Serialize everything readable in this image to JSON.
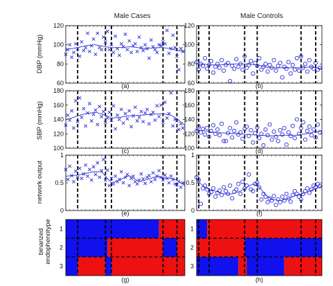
{
  "chart_data": {
    "type": "scatter",
    "columns": [
      {
        "title": "Male Cases",
        "marker": "x"
      },
      {
        "title": "Male Controls",
        "marker": "o"
      }
    ],
    "colors": {
      "data": "#2b2bd6",
      "heatmap_high": "#ee1111",
      "heatmap_low": "#1111ee"
    },
    "x_range": [
      0,
      60
    ],
    "rows": [
      {
        "ylabel": "DBP (mmHg)",
        "ylim": [
          60,
          120
        ],
        "yticks": [
          60,
          80,
          100,
          120
        ],
        "panel_labels": [
          "(a)",
          "(b)"
        ]
      },
      {
        "ylabel": "SBP (mmHg)",
        "ylim": [
          100,
          180
        ],
        "yticks": [
          100,
          120,
          140,
          160,
          180
        ],
        "panel_labels": [
          "(c)",
          "(d)"
        ]
      },
      {
        "ylabel": "network output",
        "ylim": [
          0,
          1
        ],
        "yticks": [
          0,
          0.5,
          1
        ],
        "panel_labels": [
          "(e)",
          "(f)"
        ]
      }
    ],
    "heatmap": {
      "ylabel_lines": [
        "binarized",
        "endophenotype"
      ],
      "rows": [
        1,
        2,
        3
      ],
      "panel_labels": [
        "(g)",
        "(h)"
      ],
      "cases": [
        [
          [
            0,
            47,
            0
          ],
          [
            47,
            60,
            1
          ]
        ],
        [
          [
            0,
            21,
            0
          ],
          [
            21,
            49,
            1
          ],
          [
            49,
            56,
            0
          ],
          [
            56,
            60,
            1
          ]
        ],
        [
          [
            0,
            6,
            0
          ],
          [
            6,
            20,
            1
          ],
          [
            20,
            23,
            0
          ],
          [
            23,
            60,
            1
          ]
        ]
      ],
      "controls": [
        [
          [
            0,
            5,
            0
          ],
          [
            5,
            60,
            1
          ]
        ],
        [
          [
            0,
            23,
            1
          ],
          [
            23,
            60,
            0
          ]
        ],
        [
          [
            0,
            20,
            0
          ],
          [
            20,
            24,
            1
          ],
          [
            24,
            42,
            0
          ],
          [
            42,
            60,
            1
          ]
        ]
      ]
    },
    "panels": [
      {
        "row": 0,
        "col": 0,
        "vlines": [
          6,
          20,
          23,
          49,
          56
        ],
        "trend": {
          "x": [
            0,
            3,
            6,
            10,
            15,
            20,
            23,
            27,
            33,
            40,
            45,
            49,
            53,
            56,
            60
          ],
          "y": [
            95,
            96,
            97,
            99,
            100,
            98,
            97,
            97,
            98,
            96,
            97,
            97,
            96,
            94,
            93
          ]
        },
        "points": {
          "x": [
            0,
            1,
            2,
            3,
            4,
            5,
            6,
            7,
            8,
            9,
            10,
            11,
            12,
            13,
            14,
            15,
            16,
            17,
            18,
            19,
            20,
            21,
            22,
            23,
            24,
            25,
            26,
            27,
            28,
            29,
            30,
            31,
            32,
            33,
            34,
            35,
            36,
            37,
            38,
            39,
            40,
            41,
            42,
            43,
            44,
            45,
            46,
            47,
            48,
            49,
            50,
            51,
            52,
            53,
            54,
            55,
            56,
            57,
            58,
            59
          ],
          "y": [
            90,
            95,
            100,
            87,
            92,
            101,
            96,
            88,
            103,
            94,
            97,
            112,
            93,
            99,
            106,
            90,
            112,
            97,
            95,
            108,
            103,
            114,
            95,
            100,
            92,
            109,
            96,
            89,
            101,
            98,
            111,
            95,
            104,
            92,
            99,
            101,
            93,
            108,
            97,
            94,
            100,
            96,
            86,
            105,
            98,
            95,
            92,
            100,
            99,
            103,
            101,
            115,
            91,
            96,
            110,
            97,
            88,
            74,
            96,
            93
          ]
        }
      },
      {
        "row": 0,
        "col": 1,
        "vlines": [
          1,
          6,
          23,
          29,
          50,
          57
        ],
        "trend": {
          "x": [
            0,
            3,
            6,
            12,
            18,
            23,
            29,
            35,
            42,
            50,
            55,
            60
          ],
          "y": [
            80,
            80,
            79,
            79,
            80,
            80,
            79,
            76,
            76,
            76,
            77,
            75
          ]
        },
        "points": {
          "x": [
            0,
            1,
            2,
            3,
            4,
            5,
            6,
            7,
            8,
            9,
            10,
            11,
            12,
            13,
            14,
            15,
            16,
            17,
            18,
            19,
            20,
            21,
            22,
            23,
            24,
            25,
            26,
            27,
            28,
            29,
            30,
            31,
            32,
            33,
            34,
            35,
            36,
            37,
            38,
            39,
            40,
            41,
            42,
            43,
            44,
            45,
            46,
            47,
            48,
            49,
            50,
            51,
            52,
            53,
            54,
            55,
            56,
            57,
            58,
            59
          ],
          "y": [
            82,
            74,
            80,
            78,
            86,
            75,
            79,
            83,
            71,
            77,
            80,
            76,
            84,
            73,
            79,
            81,
            62,
            78,
            75,
            85,
            77,
            80,
            74,
            88,
            76,
            79,
            83,
            70,
            81,
            78,
            86,
            74,
            77,
            80,
            72,
            79,
            76,
            84,
            73,
            78,
            81,
            66,
            77,
            75,
            82,
            70,
            79,
            74,
            86,
            73,
            88,
            76,
            80,
            72,
            84,
            77,
            75,
            81,
            74,
            76
          ]
        }
      },
      {
        "row": 1,
        "col": 0,
        "vlines": [
          6,
          20,
          23,
          49,
          56
        ],
        "trend": {
          "x": [
            0,
            3,
            6,
            10,
            15,
            20,
            23,
            27,
            32,
            38,
            43,
            49,
            53,
            56,
            60
          ],
          "y": [
            140,
            142,
            145,
            148,
            150,
            146,
            142,
            143,
            145,
            146,
            147,
            148,
            146,
            141,
            132
          ]
        },
        "points": {
          "x": [
            0,
            1,
            2,
            3,
            4,
            5,
            6,
            7,
            8,
            9,
            10,
            11,
            12,
            13,
            14,
            15,
            16,
            17,
            18,
            19,
            20,
            21,
            22,
            23,
            24,
            25,
            26,
            27,
            28,
            29,
            30,
            31,
            32,
            33,
            34,
            35,
            36,
            37,
            38,
            39,
            40,
            41,
            42,
            43,
            44,
            45,
            46,
            47,
            48,
            49,
            50,
            51,
            52,
            53,
            54,
            55,
            56,
            57,
            58,
            59
          ],
          "y": [
            132,
            146,
            139,
            152,
            128,
            166,
            137,
            170,
            143,
            155,
            131,
            149,
            162,
            138,
            147,
            153,
            133,
            158,
            144,
            151,
            136,
            142,
            150,
            139,
            159,
            127,
            146,
            140,
            154,
            135,
            148,
            141,
            152,
            130,
            145,
            157,
            138,
            143,
            151,
            137,
            149,
            154,
            134,
            147,
            150,
            139,
            159,
            144,
            160,
            136,
            164,
            142,
            148,
            177,
            131,
            140,
            138,
            126,
            134,
            128
          ]
        }
      },
      {
        "row": 1,
        "col": 1,
        "vlines": [
          1,
          6,
          23,
          29,
          50,
          57
        ],
        "trend": {
          "x": [
            0,
            4,
            8,
            14,
            20,
            25,
            30,
            36,
            42,
            48,
            52,
            56,
            60
          ],
          "y": [
            125,
            124,
            122,
            121,
            120,
            119,
            118,
            117,
            118,
            118,
            120,
            122,
            124
          ]
        },
        "points": {
          "x": [
            0,
            1,
            2,
            3,
            4,
            5,
            6,
            7,
            8,
            9,
            10,
            11,
            12,
            13,
            14,
            15,
            16,
            17,
            18,
            19,
            20,
            21,
            22,
            23,
            24,
            25,
            26,
            27,
            28,
            29,
            30,
            31,
            32,
            33,
            34,
            35,
            36,
            37,
            38,
            39,
            40,
            41,
            42,
            43,
            44,
            45,
            46,
            47,
            48,
            49,
            50,
            51,
            52,
            53,
            54,
            55,
            56,
            57,
            58,
            59
          ],
          "y": [
            124,
            130,
            122,
            127,
            119,
            128,
            116,
            124,
            132,
            120,
            126,
            118,
            134,
            110,
            110,
            121,
            128,
            115,
            124,
            136,
            119,
            122,
            113,
            127,
            130,
            117,
            125,
            108,
            121,
            129,
            114,
            120,
            104,
            126,
            118,
            133,
            112,
            123,
            116,
            110,
            125,
            119,
            128,
            105,
            122,
            117,
            131,
            114,
            140,
            120,
            128,
            136,
            112,
            124,
            130,
            118,
            126,
            115,
            133,
            122
          ]
        }
      },
      {
        "row": 2,
        "col": 0,
        "vlines": [
          6,
          20,
          23,
          49,
          56
        ],
        "trend": {
          "x": [
            0,
            3,
            6,
            10,
            14,
            18,
            20,
            23,
            27,
            32,
            37,
            42,
            46,
            49,
            53,
            56,
            60
          ],
          "y": [
            0.62,
            0.63,
            0.64,
            0.67,
            0.7,
            0.7,
            0.62,
            0.5,
            0.55,
            0.63,
            0.52,
            0.57,
            0.62,
            0.59,
            0.58,
            0.55,
            0.45
          ]
        },
        "points": {
          "x": [
            0,
            1,
            2,
            3,
            4,
            5,
            6,
            7,
            8,
            9,
            10,
            11,
            12,
            13,
            14,
            15,
            16,
            17,
            18,
            19,
            20,
            21,
            22,
            23,
            24,
            25,
            26,
            27,
            28,
            29,
            30,
            31,
            32,
            33,
            34,
            35,
            36,
            37,
            38,
            39,
            40,
            41,
            42,
            43,
            44,
            45,
            46,
            47,
            48,
            49,
            50,
            51,
            52,
            53,
            54,
            55,
            56,
            57,
            58,
            59
          ],
          "y": [
            0.74,
            0.56,
            0.8,
            0.63,
            0.52,
            0.71,
            0.6,
            0.76,
            0.58,
            0.66,
            0.82,
            0.62,
            0.74,
            0.55,
            0.79,
            0.65,
            0.86,
            0.6,
            0.72,
            0.92,
            0.55,
            0.73,
            0.45,
            0.58,
            0.48,
            0.62,
            0.52,
            0.56,
            0.7,
            0.5,
            0.6,
            0.65,
            0.45,
            0.58,
            0.62,
            0.52,
            0.48,
            0.55,
            0.66,
            0.57,
            0.49,
            0.6,
            0.63,
            0.52,
            0.68,
            0.56,
            0.62,
            0.72,
            0.6,
            0.55,
            0.64,
            0.58,
            0.5,
            0.62,
            0.56,
            0.48,
            0.46,
            0.52,
            0.42,
            0.5
          ]
        }
      },
      {
        "row": 2,
        "col": 1,
        "vlines": [
          1,
          6,
          23,
          29,
          50,
          57
        ],
        "trend": {
          "x": [
            0,
            2,
            4,
            6,
            9,
            13,
            17,
            21,
            24,
            27,
            30,
            33,
            36,
            40,
            44,
            48,
            52,
            56,
            60
          ],
          "y": [
            0.58,
            0.48,
            0.42,
            0.38,
            0.35,
            0.3,
            0.3,
            0.35,
            0.42,
            0.48,
            0.42,
            0.28,
            0.2,
            0.18,
            0.22,
            0.28,
            0.32,
            0.38,
            0.44
          ]
        },
        "points": {
          "x": [
            0,
            1,
            2,
            3,
            4,
            5,
            6,
            7,
            8,
            9,
            10,
            11,
            12,
            13,
            14,
            15,
            16,
            17,
            18,
            19,
            20,
            21,
            22,
            23,
            24,
            25,
            26,
            27,
            28,
            29,
            30,
            31,
            32,
            33,
            34,
            35,
            36,
            37,
            38,
            39,
            40,
            41,
            42,
            43,
            44,
            45,
            46,
            47,
            48,
            49,
            50,
            51,
            52,
            53,
            54,
            55,
            56,
            57,
            58,
            59
          ],
          "y": [
            0.6,
            0.55,
            0.12,
            0.4,
            0.45,
            0.38,
            0.3,
            0.33,
            0.4,
            0.25,
            0.32,
            0.36,
            0.28,
            0.42,
            0.35,
            0.3,
            0.45,
            0.22,
            0.34,
            0.38,
            0.48,
            0.3,
            0.52,
            0.4,
            0.45,
            0.65,
            0.38,
            0.35,
            0.48,
            0.5,
            0.42,
            0.2,
            0.3,
            0.25,
            0.15,
            0.22,
            0.18,
            0.26,
            0.1,
            0.2,
            0.15,
            0.25,
            0.18,
            0.3,
            0.22,
            0.16,
            0.28,
            0.35,
            0.3,
            0.25,
            0.2,
            0.3,
            0.35,
            0.4,
            0.32,
            0.38,
            0.45,
            0.42,
            0.48,
            0.44
          ]
        }
      }
    ]
  }
}
